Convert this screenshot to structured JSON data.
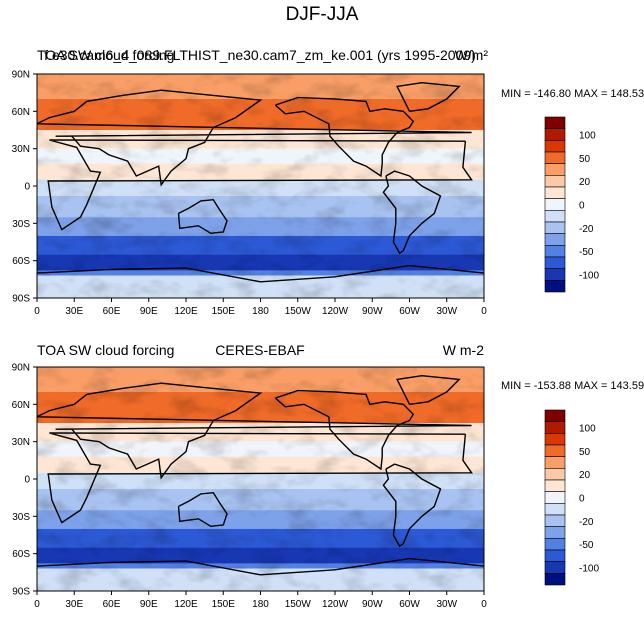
{
  "figure_title": "DJF-JJA",
  "chart_data": [
    {
      "type": "heatmap",
      "subtitle_left": "TOA SW cloud forcing",
      "subtitle_center": "f.e30.cam6_4_089.FLTHIST_ne30.cam7_zm_ke.001 (yrs 1995-2009)",
      "units": "W/m²",
      "min_max_label": "MIN = -146.80 MAX = 148.53",
      "min": -146.8,
      "max": 148.53,
      "x_ticks": [
        "0",
        "30E",
        "60E",
        "90E",
        "120E",
        "150E",
        "180",
        "150W",
        "120W",
        "90W",
        "60W",
        "30W",
        "0"
      ],
      "y_ticks": [
        "90N",
        "60N",
        "30N",
        "0",
        "30S",
        "60S",
        "90S"
      ],
      "xlim": [
        0,
        360
      ],
      "ylim": [
        -90,
        90
      ]
    },
    {
      "type": "heatmap",
      "subtitle_left": "TOA SW cloud forcing",
      "subtitle_center": "CERES-EBAF",
      "units": "W m-2",
      "min_max_label": "MIN = -153.88 MAX = 143.59",
      "min": -153.88,
      "max": 143.59,
      "x_ticks": [
        "0",
        "30E",
        "60E",
        "90E",
        "120E",
        "150E",
        "180",
        "150W",
        "120W",
        "90W",
        "60W",
        "30W",
        "0"
      ],
      "y_ticks": [
        "90N",
        "60N",
        "30N",
        "0",
        "30S",
        "60S",
        "90S"
      ],
      "xlim": [
        0,
        360
      ],
      "ylim": [
        -90,
        90
      ]
    }
  ],
  "colorbar": {
    "labels": [
      "100",
      "50",
      "20",
      "0",
      "-20",
      "-50",
      "-100"
    ],
    "colors": [
      "#800000",
      "#b21a00",
      "#d93900",
      "#f06a28",
      "#f99e66",
      "#fcc9a6",
      "#fde6d4",
      "#f0f4fb",
      "#cfe0f7",
      "#a8c3f1",
      "#7ea2ea",
      "#5380e3",
      "#2c59d6",
      "#1737b3",
      "#000f80"
    ]
  }
}
